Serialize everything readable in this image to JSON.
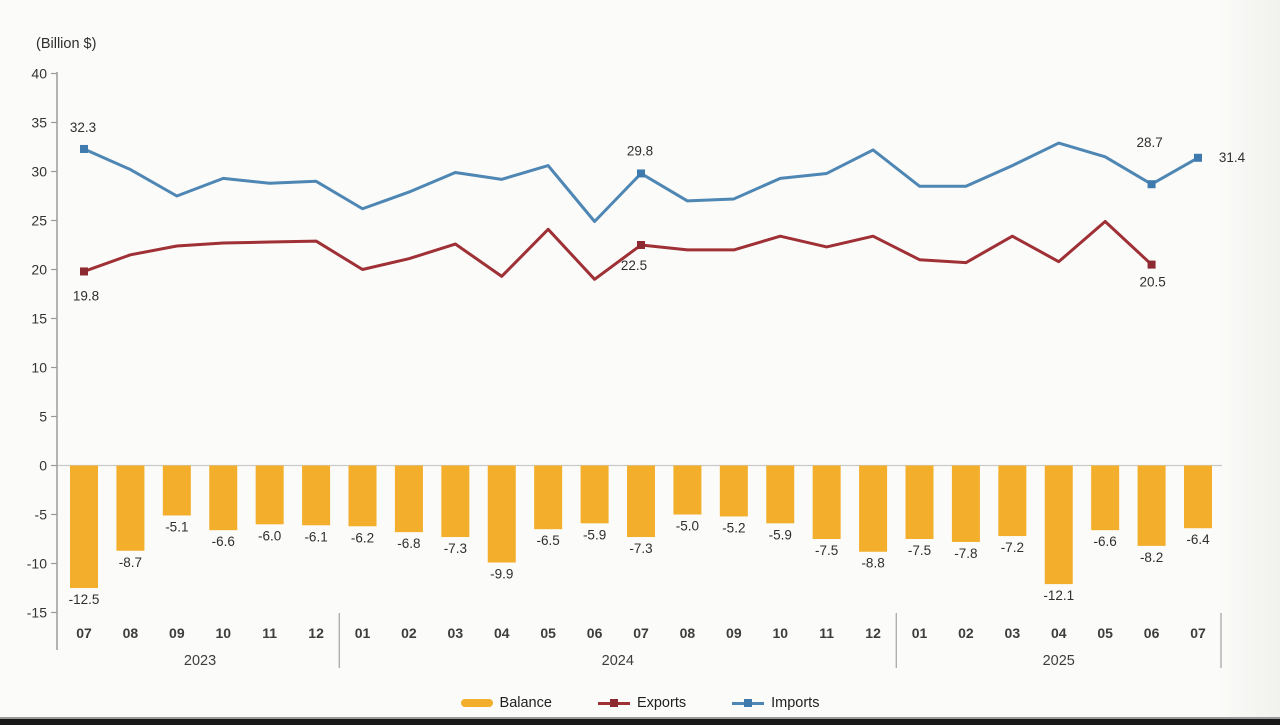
{
  "unit_label": "(Billion $)",
  "colors": {
    "balance": "#F3AE2B",
    "exports": "#9E3036",
    "imports": "#4E86B4",
    "exports_marker": "#8D2930",
    "imports_marker": "#3E7AAE",
    "text": "#333333",
    "axis": "#9B9B9B",
    "zero_line": "#C9C9C9"
  },
  "legend": {
    "items": [
      {
        "label": "Balance",
        "type": "bar",
        "color": "#F3AE2B"
      },
      {
        "label": "Exports",
        "type": "line",
        "color": "#9E3036"
      },
      {
        "label": "Imports",
        "type": "line",
        "color": "#4E86B4"
      }
    ]
  },
  "chart_data": {
    "type": "bar+line combo",
    "title": "",
    "ylabel": "(Billion $)",
    "ylim": [
      -15,
      40
    ],
    "yticks": [
      40,
      35,
      30,
      25,
      20,
      15,
      10,
      5,
      0,
      -5,
      -10,
      -15
    ],
    "grid": "zero line only",
    "legend_position": "bottom-center",
    "categories": [
      "07",
      "08",
      "09",
      "10",
      "11",
      "12",
      "01",
      "02",
      "03",
      "04",
      "05",
      "06",
      "07",
      "08",
      "09",
      "10",
      "11",
      "12",
      "01",
      "02",
      "03",
      "04",
      "05",
      "06",
      "07"
    ],
    "year_groups": [
      {
        "label": "2023",
        "start_index": 0,
        "end_index": 5
      },
      {
        "label": "2024",
        "start_index": 6,
        "end_index": 17
      },
      {
        "label": "2025",
        "start_index": 18,
        "end_index": 24
      }
    ],
    "series": [
      {
        "name": "Balance",
        "type": "bar",
        "color": "#F3AE2B",
        "data_labels": "all",
        "values": [
          -12.5,
          -8.7,
          -5.1,
          -6.6,
          -6.0,
          -6.1,
          -6.2,
          -6.8,
          -7.3,
          -9.9,
          -6.5,
          -5.9,
          -7.3,
          -5.0,
          -5.2,
          -5.9,
          -7.5,
          -8.8,
          -7.5,
          -7.8,
          -7.2,
          -12.1,
          -6.6,
          -8.2,
          -6.4
        ]
      },
      {
        "name": "Exports",
        "type": "line",
        "color": "#9E3036",
        "values": [
          19.8,
          21.5,
          22.4,
          22.7,
          22.8,
          22.9,
          20.0,
          21.1,
          22.6,
          19.3,
          24.1,
          19.0,
          22.5,
          22.0,
          22.0,
          23.4,
          22.3,
          23.4,
          21.0,
          20.7,
          23.4,
          20.8,
          24.9,
          20.5,
          null
        ],
        "labeled_points": [
          {
            "index": 0,
            "value": 19.8
          },
          {
            "index": 12,
            "value": 22.5
          },
          {
            "index": 23,
            "value": 20.5
          }
        ]
      },
      {
        "name": "Imports",
        "type": "line",
        "color": "#4E86B4",
        "values": [
          32.3,
          30.2,
          27.5,
          29.3,
          28.8,
          29.0,
          26.2,
          27.9,
          29.9,
          29.2,
          30.6,
          24.9,
          29.8,
          27.0,
          27.2,
          29.3,
          29.8,
          32.2,
          28.5,
          28.5,
          30.6,
          32.9,
          31.5,
          28.7,
          31.4
        ],
        "labeled_points": [
          {
            "index": 0,
            "value": 32.3
          },
          {
            "index": 12,
            "value": 29.8
          },
          {
            "index": 23,
            "value": 28.7
          },
          {
            "index": 24,
            "value": 31.4
          }
        ]
      }
    ]
  }
}
